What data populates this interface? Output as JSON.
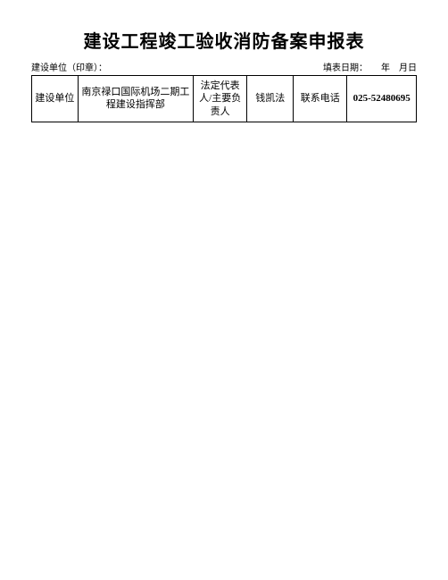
{
  "title": "建设工程竣工验收消防备案申报表",
  "subtitle_left": "建设单位（印章）：",
  "subtitle_right": "填表日期：　　年　月日",
  "table": {
    "row1": {
      "label1": "建设单位",
      "value1": "南京禄口国际机场二期工程建设指挥部",
      "label2": "法定代表人/主要负责人",
      "value2": "钱凯法",
      "label3": "联系电话",
      "value3": "025-52480695"
    }
  },
  "styling": {
    "background_color": "#ffffff",
    "border_color": "#000000",
    "title_fontsize": 20,
    "body_fontsize": 11,
    "subtitle_fontsize": 10
  }
}
